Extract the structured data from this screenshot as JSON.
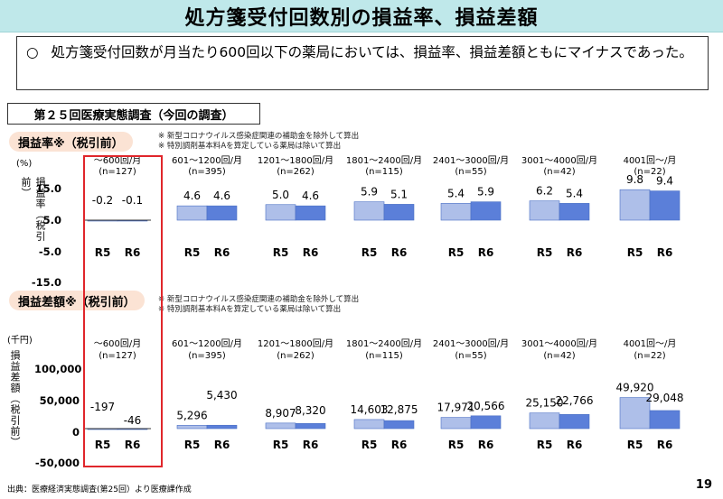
{
  "title": "処方箋受付回数別の損益率、損益差額",
  "summary": {
    "bullet": "○",
    "text": "処方箋受付回数が月当たり600回以下の薬局においては、損益率、損益差額ともにマイナスであった。"
  },
  "survey_label": "第２５回医療実態調査（今回の調査）",
  "notes": [
    "※ 新型コロナウイルス感染症関連の補助金を除外して算出",
    "※ 特別調剤基本料Aを算定している薬局は除いて算出"
  ],
  "footer": "出典：医療経済実態調査(第25回）より医療課作成",
  "page_number": "19",
  "colors": {
    "r5": "#aebfe9",
    "r6": "#5b7fd9",
    "highlight": "#e0262b",
    "tag_bg": "#fbe3d4",
    "title_bg": "#bfe8ea"
  },
  "chart_data": [
    {
      "type": "bar",
      "title": "損益率※（税引前）",
      "unit": "(%)",
      "ylabel": "損益率（税引前）",
      "yticks": [
        "15.0",
        "5.0",
        "-5.0",
        "-15.0"
      ],
      "ylim": [
        -15,
        15
      ],
      "categories": [
        "～600回/月",
        "601～1200回/月",
        "1201～1800回/月",
        "1801～2400回/月",
        "2401～3000回/月",
        "3001～4000回/月",
        "4001回～/月"
      ],
      "n": [
        "(n=127)",
        "(n=395)",
        "(n=262)",
        "(n=115)",
        "(n=55)",
        "(n=42)",
        "(n=22)"
      ],
      "series": [
        {
          "name": "R5",
          "values": [
            -0.2,
            4.6,
            5.0,
            5.9,
            5.4,
            6.2,
            9.8
          ],
          "labels": [
            "-0.2",
            "4.6",
            "5.0",
            "5.9",
            "5.4",
            "6.2",
            "9.8"
          ]
        },
        {
          "name": "R6",
          "values": [
            -0.1,
            4.6,
            4.6,
            5.1,
            5.9,
            5.4,
            9.4
          ],
          "labels": [
            "-0.1",
            "4.6",
            "4.6",
            "5.1",
            "5.9",
            "5.4",
            "9.4"
          ]
        }
      ]
    },
    {
      "type": "bar",
      "title": "損益差額※（税引前）",
      "unit": "(千円)",
      "ylabel": "損益差額（税引前）",
      "yticks": [
        "100,000",
        "50,000",
        "0",
        "-50,000"
      ],
      "ylim": [
        -50000,
        100000
      ],
      "categories": [
        "～600回/月",
        "601～1200回/月",
        "1201～1800回/月",
        "1801～2400回/月",
        "2401～3000回/月",
        "3001～4000回/月",
        "4001回～/月"
      ],
      "n": [
        "(n=127)",
        "(n=395)",
        "(n=262)",
        "(n=115)",
        "(n=55)",
        "(n=42)",
        "(n=22)"
      ],
      "series": [
        {
          "name": "R5",
          "values": [
            -197,
            5296,
            8907,
            14603,
            17971,
            25150,
            49920
          ],
          "labels": [
            "-197",
            "5,296",
            "8,907",
            "14,603",
            "17,971",
            "25,150",
            "49,920"
          ]
        },
        {
          "name": "R6",
          "values": [
            -46,
            5430,
            8320,
            12875,
            20566,
            22766,
            29048
          ],
          "labels": [
            "-46",
            "5,430",
            "8,320",
            "12,875",
            "20,566",
            "22,766",
            "29,048"
          ]
        }
      ]
    }
  ]
}
